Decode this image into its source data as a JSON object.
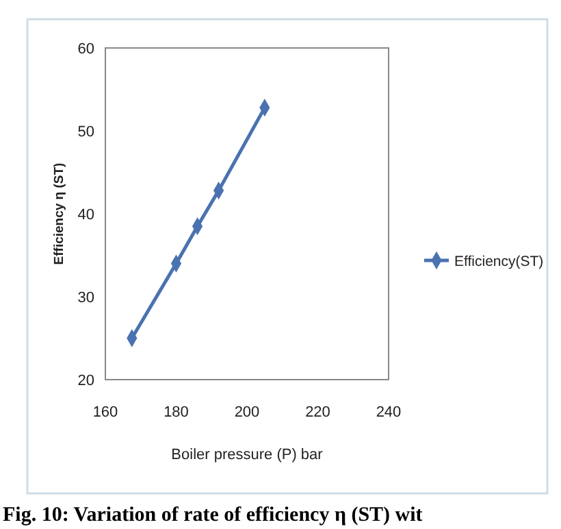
{
  "chart_data": {
    "type": "line",
    "xlabel": "Boiler pressure (P) bar",
    "ylabel": "Efficiency  η (ST)",
    "x": [
      167.5,
      180,
      186,
      192,
      205
    ],
    "series": [
      {
        "name": "Efficiency(ST)",
        "color": "#4a72b0",
        "values": [
          25,
          34,
          38.5,
          42.8,
          52.8
        ]
      }
    ],
    "xlim": [
      160,
      240
    ],
    "xticks": [
      160,
      180,
      200,
      220,
      240
    ],
    "ylim": [
      20,
      60
    ],
    "yticks": [
      20,
      30,
      40,
      50,
      60
    ],
    "grid": false,
    "legend": "right",
    "marker": "diamond",
    "line_style": "solid",
    "annotations": [
      "Fig. 10: Variation of rate of efficiency η (ST) wit"
    ]
  }
}
